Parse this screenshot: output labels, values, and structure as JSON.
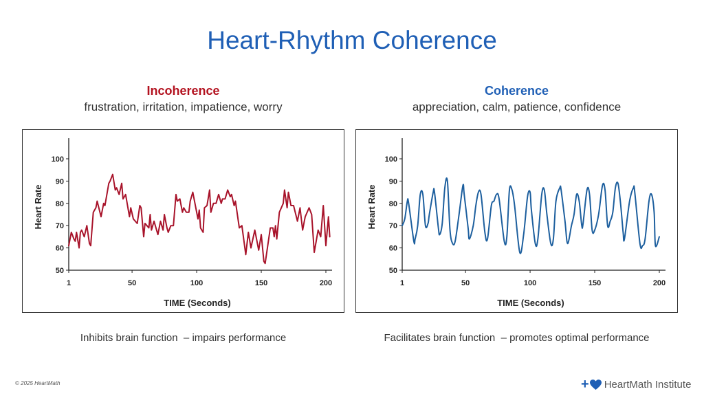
{
  "title": "Heart-Rhythm Coherence",
  "panels": [
    {
      "heading": "Incoherence",
      "heading_color": "#b3121f",
      "subtitle": "frustration, irritation, impatience, worry",
      "caption": "Inhibits brain function  – impairs performance"
    },
    {
      "heading": "Coherence",
      "heading_color": "#1f5fb5",
      "subtitle": "appreciation, calm, patience, confidence",
      "caption": "Facilitates brain function  – promotes optimal performance"
    }
  ],
  "footer": {
    "copyright": "© 2025 HeartMath",
    "logo_text": "HeartMath Institute",
    "logo_plus": "+"
  },
  "chart_data": [
    {
      "type": "line",
      "xlabel": "TIME (Seconds)",
      "ylabel": "Heart Rate",
      "xlim": [
        1,
        200
      ],
      "ylim": [
        50,
        100
      ],
      "xticks": [
        1,
        50,
        100,
        150,
        200
      ],
      "yticks": [
        50,
        60,
        70,
        80,
        90,
        100
      ],
      "grid": false,
      "color": "#a8132a",
      "smooth": false,
      "x": [
        1,
        3,
        5,
        6,
        7,
        9,
        10,
        11,
        13,
        15,
        17,
        18,
        20,
        21,
        22,
        23,
        26,
        28,
        29,
        32,
        33,
        35,
        37,
        38,
        40,
        42,
        43,
        45,
        48,
        49,
        51,
        54,
        56,
        57,
        59,
        60,
        63,
        64,
        65,
        67,
        70,
        72,
        74,
        75,
        77,
        78,
        80,
        82,
        84,
        85,
        87,
        89,
        90,
        92,
        94,
        95,
        97,
        99,
        101,
        102,
        103,
        105,
        106,
        108,
        110,
        111,
        113,
        115,
        117,
        119,
        120,
        122,
        124,
        126,
        127,
        129,
        130,
        133,
        135,
        138,
        140,
        142,
        145,
        148,
        150,
        152,
        153,
        155,
        157,
        159,
        160,
        161,
        162,
        164,
        167,
        168,
        170,
        171,
        173,
        175,
        178,
        180,
        182,
        184,
        187,
        189,
        191,
        194,
        196,
        198,
        200,
        202,
        203
      ],
      "y": [
        61,
        67,
        64,
        63,
        67,
        60,
        67,
        68,
        65,
        70,
        62,
        61,
        76,
        77,
        78,
        81,
        74,
        80,
        79,
        89,
        90,
        93,
        86,
        87,
        84,
        89,
        82,
        84,
        74,
        78,
        73,
        71,
        79,
        78,
        65,
        71,
        69,
        75,
        68,
        72,
        66,
        72,
        68,
        75,
        69,
        67,
        70,
        70,
        84,
        81,
        82,
        76,
        78,
        76,
        76,
        81,
        85,
        79,
        73,
        77,
        69,
        67,
        78,
        79,
        86,
        76,
        80,
        80,
        84,
        80,
        82,
        82,
        86,
        83,
        84,
        79,
        81,
        69,
        70,
        57,
        67,
        60,
        68,
        59,
        66,
        54,
        53,
        61,
        69,
        69,
        65,
        70,
        64,
        76,
        80,
        86,
        78,
        85,
        79,
        79,
        72,
        78,
        68,
        74,
        78,
        75,
        58,
        68,
        65,
        79,
        61,
        74,
        65
      ]
    },
    {
      "type": "line",
      "xlabel": "TIME (Seconds)",
      "ylabel": "Heart Rate",
      "xlim": [
        1,
        200
      ],
      "ylim": [
        50,
        100
      ],
      "xticks": [
        1,
        50,
        100,
        150,
        200
      ],
      "yticks": [
        50,
        60,
        70,
        80,
        90,
        100
      ],
      "grid": false,
      "color": "#1d5f9e",
      "smooth": true,
      "x": [
        1,
        3,
        5,
        6,
        10,
        11,
        13,
        15,
        17,
        19,
        21,
        22,
        25,
        26,
        29,
        30,
        32,
        34,
        36,
        38,
        40,
        42,
        45,
        48,
        49,
        52,
        53,
        56,
        58,
        60,
        62,
        65,
        67,
        70,
        72,
        74,
        76,
        80,
        82,
        84,
        86,
        88,
        92,
        95,
        98,
        100,
        101,
        104,
        106,
        109,
        111,
        113,
        116,
        118,
        120,
        123,
        124,
        127,
        129,
        132,
        134,
        136,
        138,
        140,
        141,
        144,
        146,
        148,
        150,
        153,
        156,
        158,
        160,
        162,
        164,
        166,
        168,
        170,
        172,
        173,
        177,
        180,
        181,
        185,
        187,
        189,
        192,
        194,
        196,
        197,
        200
      ],
      "y": [
        70,
        73,
        81,
        80,
        63,
        64,
        70,
        84,
        84,
        70,
        71,
        75,
        85,
        85,
        69,
        66,
        71,
        87,
        90,
        68,
        62,
        63,
        75,
        88,
        84,
        69,
        64,
        70,
        79,
        85,
        84,
        67,
        64,
        79,
        81,
        84,
        82,
        63,
        65,
        86,
        86,
        79,
        58,
        66,
        83,
        85,
        77,
        62,
        64,
        84,
        86,
        75,
        62,
        64,
        81,
        87,
        86,
        72,
        62,
        70,
        75,
        84,
        81,
        70,
        71,
        86,
        84,
        68,
        68,
        75,
        88,
        86,
        70,
        72,
        76,
        87,
        89,
        80,
        67,
        64,
        81,
        87,
        85,
        62,
        61,
        64,
        81,
        84,
        76,
        61,
        65
      ]
    }
  ]
}
